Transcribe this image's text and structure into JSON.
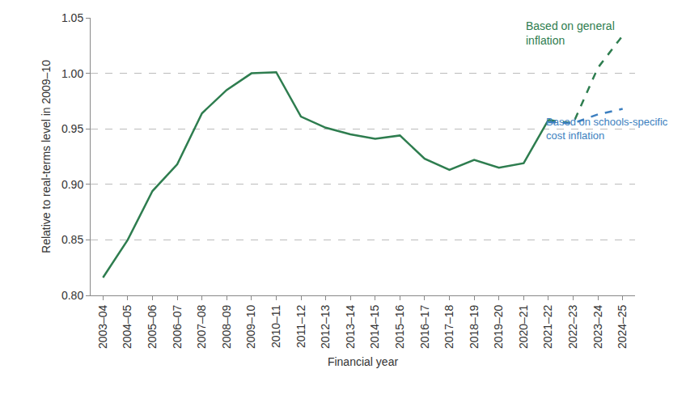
{
  "chart_data": {
    "type": "line",
    "x_label": "Financial year",
    "y_label": "Relative to real-terms level in 2009–10",
    "categories": [
      "2003–04",
      "2004–05",
      "2005–06",
      "2006–07",
      "2007–08",
      "2008–09",
      "2009–10",
      "2010–11",
      "2011–12",
      "2012–13",
      "2013–14",
      "2014–15",
      "2015–16",
      "2016–17",
      "2017–18",
      "2018–19",
      "2019–20",
      "2020–21",
      "2021–22",
      "2022–23",
      "2023–24",
      "2024–25"
    ],
    "series": [
      {
        "color": "#2E7D4F",
        "line_style": "solid",
        "values": [
          0.816,
          0.85,
          0.894,
          0.918,
          0.964,
          0.985,
          1.0,
          1.001,
          0.961,
          0.951,
          0.945,
          0.941,
          0.944,
          0.923,
          0.913,
          0.922,
          0.915,
          0.919,
          0.958,
          null,
          null,
          null
        ]
      },
      {
        "name": "Based on general inflation",
        "color": "#2E7D4F",
        "line_style": "dashed",
        "values": [
          null,
          null,
          null,
          null,
          null,
          null,
          null,
          null,
          null,
          null,
          null,
          null,
          null,
          null,
          null,
          null,
          null,
          null,
          0.958,
          0.955,
          1.005,
          1.034
        ]
      },
      {
        "name": "Based on schools-specific cost inflation",
        "color": "#3C7FC0",
        "line_style": "dashed",
        "values": [
          null,
          null,
          null,
          null,
          null,
          null,
          null,
          null,
          null,
          null,
          null,
          null,
          null,
          null,
          null,
          null,
          null,
          null,
          0.956,
          0.955,
          0.963,
          0.968
        ]
      }
    ],
    "ylim": [
      0.8,
      1.05
    ],
    "yticks": [
      {
        "value": 0.8,
        "label": "0.80"
      },
      0.85,
      {
        "value": 0.9,
        "label": "0.90"
      },
      0.95,
      {
        "value": 1.0,
        "label": "1.00"
      },
      1.05
    ],
    "grid": true
  }
}
